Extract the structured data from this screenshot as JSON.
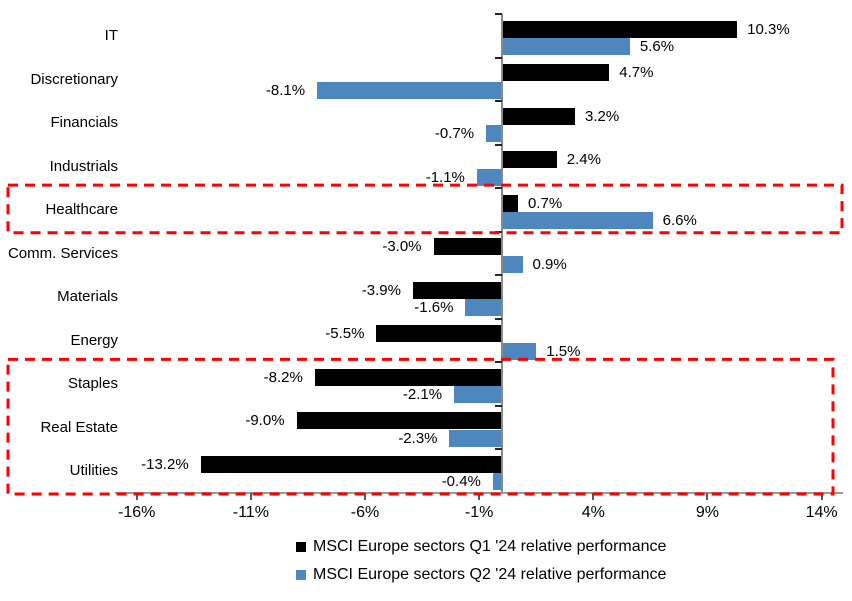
{
  "chart_data": {
    "type": "bar",
    "orientation": "horizontal",
    "title": "",
    "categories": [
      "IT",
      "Discretionary",
      "Financials",
      "Industrials",
      "Healthcare",
      "Comm. Services",
      "Materials",
      "Energy",
      "Staples",
      "Real Estate",
      "Utilities"
    ],
    "series": [
      {
        "name": "MSCI Europe sectors Q1 '24 relative performance",
        "color": "#000000",
        "values": [
          10.3,
          4.7,
          3.2,
          2.4,
          0.7,
          -3.0,
          -3.9,
          -5.5,
          -8.2,
          -9.0,
          -13.2
        ],
        "labels": [
          "10.3%",
          "4.7%",
          "3.2%",
          "2.4%",
          "0.7%",
          "-3.0%",
          "-3.9%",
          "-5.5%",
          "-8.2%",
          "-9.0%",
          "-13.2%"
        ]
      },
      {
        "name": "MSCI Europe sectors Q2 '24 relative performance",
        "color": "#4E86BE",
        "values": [
          5.6,
          -8.1,
          -0.7,
          -1.1,
          6.6,
          0.9,
          -1.6,
          1.5,
          -2.1,
          -2.3,
          -0.4
        ],
        "labels": [
          "5.6%",
          "-8.1%",
          "-0.7%",
          "-1.1%",
          "6.6%",
          "0.9%",
          "-1.6%",
          "1.5%",
          "-2.1%",
          "-2.3%",
          "-0.4%"
        ]
      }
    ],
    "x_axis": {
      "tick_labels": [
        "-16%",
        "-11%",
        "-6%",
        "-1%",
        "4%",
        "9%",
        "14%"
      ],
      "tick_values": [
        -16,
        -11,
        -6,
        -1,
        4,
        9,
        14
      ],
      "min": -16.9,
      "max": 14.9,
      "grid": false
    },
    "legend": {
      "position": "bottom",
      "entries": [
        "MSCI Europe sectors Q1 '24 relative performance",
        "MSCI Europe sectors Q2 '24 relative performance"
      ]
    },
    "highlights": [
      {
        "name": "healthcare-highlight",
        "from_category": "Healthcare",
        "to_category": "Healthcare",
        "color": "#FF0000"
      },
      {
        "name": "defensives-highlight",
        "from_category": "Staples",
        "to_category": "Utilities",
        "color": "#FF0000"
      }
    ],
    "colors": {
      "q1_bar": "#000000",
      "q2_bar": "#4E86BE",
      "highlight": "#FF0000",
      "axis": "#8A8A8A"
    }
  }
}
